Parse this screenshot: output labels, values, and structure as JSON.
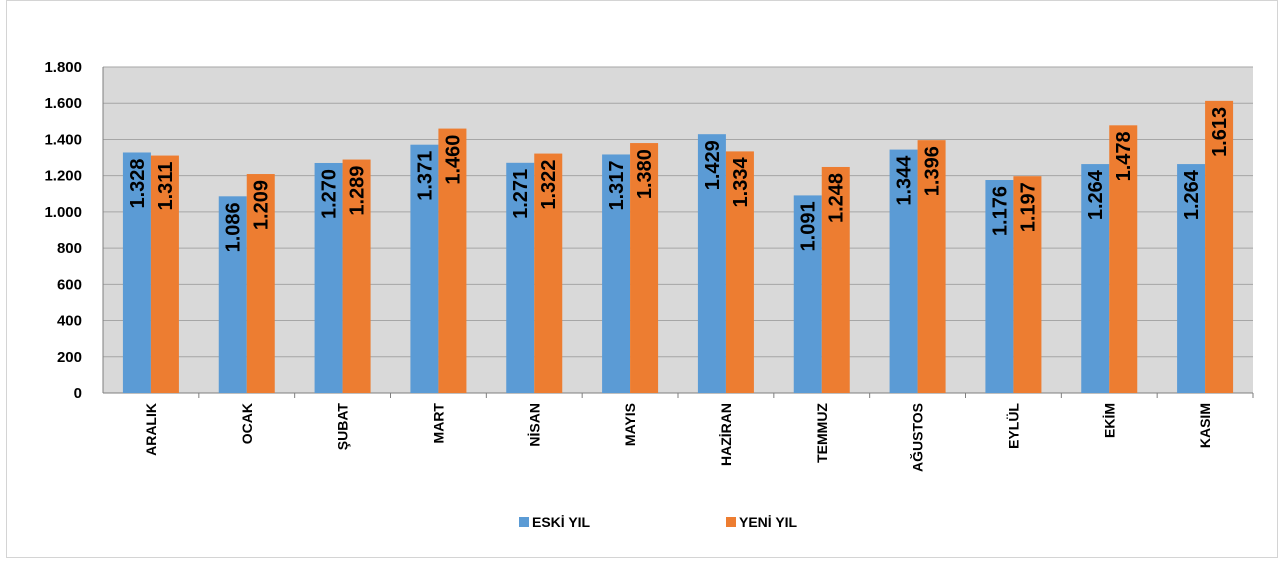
{
  "chart_data": {
    "type": "bar",
    "categories": [
      "ARALIK",
      "OCAK",
      "ŞUBAT",
      "MART",
      "NİSAN",
      "MAYIS",
      "HAZİRAN",
      "TEMMUZ",
      "AĞUSTOS",
      "EYLÜL",
      "EKİM",
      "KASIM"
    ],
    "series": [
      {
        "name": "ESKİ YIL",
        "color": "#5b9bd5",
        "values": [
          1328,
          1086,
          1270,
          1371,
          1271,
          1317,
          1429,
          1091,
          1344,
          1176,
          1264,
          1264
        ],
        "labels": [
          "1.328",
          "1.086",
          "1.270",
          "1.371",
          "1.271",
          "1.317",
          "1.429",
          "1.091",
          "1.344",
          "1.176",
          "1.264",
          "1.264"
        ]
      },
      {
        "name": "YENİ YIL",
        "color": "#ed7d31",
        "values": [
          1311,
          1209,
          1289,
          1460,
          1322,
          1380,
          1334,
          1248,
          1396,
          1197,
          1478,
          1613
        ],
        "labels": [
          "1.311",
          "1.209",
          "1.289",
          "1.460",
          "1.322",
          "1.380",
          "1.334",
          "1.248",
          "1.396",
          "1.197",
          "1.478",
          "1.613"
        ]
      }
    ],
    "ylim": [
      0,
      1800
    ],
    "yticks": [
      0,
      200,
      400,
      600,
      800,
      1000,
      1200,
      1400,
      1600,
      1800
    ],
    "ytick_labels": [
      "0",
      "200",
      "400",
      "600",
      "800",
      "1.000",
      "1.200",
      "1.400",
      "1.600",
      "1.800"
    ],
    "title": "",
    "xlabel": "",
    "ylabel": "",
    "grid": true,
    "plot_background": "#d9d9d9",
    "legend_position": "bottom"
  }
}
